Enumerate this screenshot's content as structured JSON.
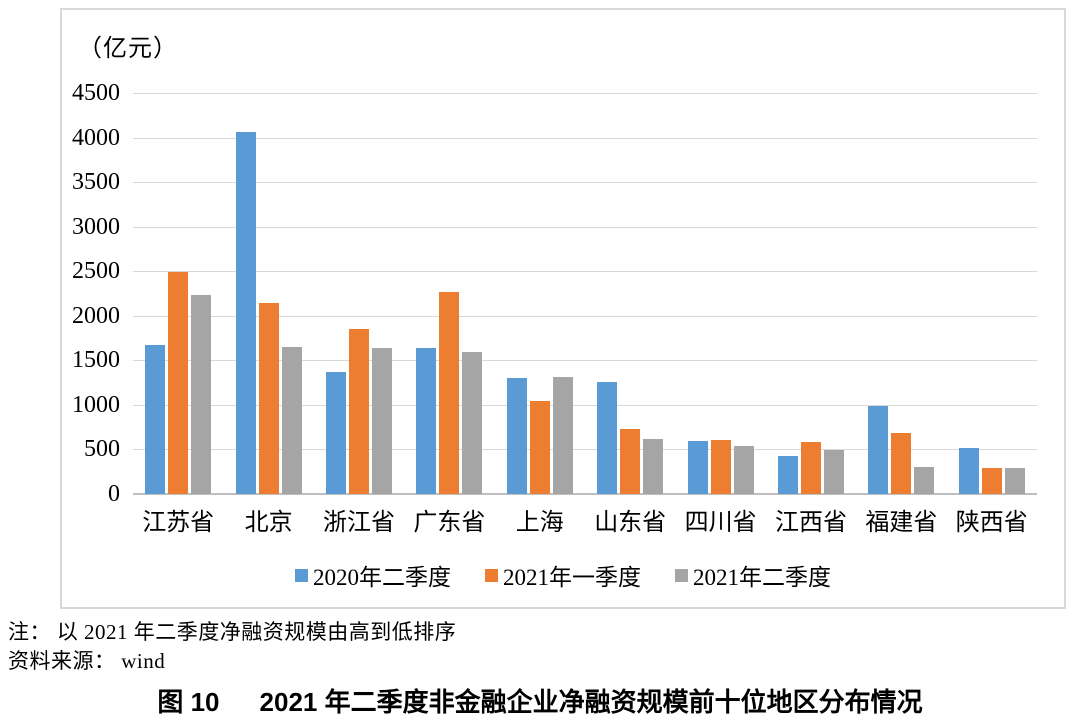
{
  "figure": {
    "unit_label": "（亿元）",
    "note_1": "注： 以 2021 年二季度净融资规模由高到低排序",
    "note_2": "资料来源： wind",
    "caption_prefix": "图 10",
    "caption_text": "2021 年二季度非金融企业净融资规模前十位地区分布情况"
  },
  "chart_data": {
    "type": "bar",
    "unit": "亿元",
    "title": "图 10 2021 年二季度非金融企业净融资规模前十位地区分布情况",
    "categories": [
      "江苏省",
      "北京",
      "浙江省",
      "广东省",
      "上海",
      "山东省",
      "四川省",
      "江西省",
      "福建省",
      "陕西省"
    ],
    "series": [
      {
        "name": "2020年二季度",
        "color": "#5B9BD5",
        "values": [
          1680,
          4075,
          1375,
          1650,
          1310,
          1270,
          605,
          440,
          1000,
          530
        ]
      },
      {
        "name": "2021年一季度",
        "color": "#ED7D31",
        "values": [
          2500,
          2150,
          1865,
          2280,
          1055,
          740,
          620,
          600,
          700,
          305
        ]
      },
      {
        "name": "2021年二季度",
        "color": "#A5A5A5",
        "values": [
          2250,
          1660,
          1645,
          1610,
          1320,
          630,
          545,
          500,
          320,
          305
        ]
      }
    ],
    "ylim": [
      0,
      4500
    ],
    "yticks": [
      0,
      500,
      1000,
      1500,
      2000,
      2500,
      3000,
      3500,
      4000,
      4500
    ],
    "grid": true,
    "legend_position": "bottom",
    "sort_note": "以 2021 年二季度净融资规模由高到低排序",
    "source": "wind"
  },
  "colors": {
    "gridline": "#D9D9D9",
    "axis_line": "#BFBFBF",
    "chart_border": "#D9D9D9",
    "text": "#000000"
  }
}
